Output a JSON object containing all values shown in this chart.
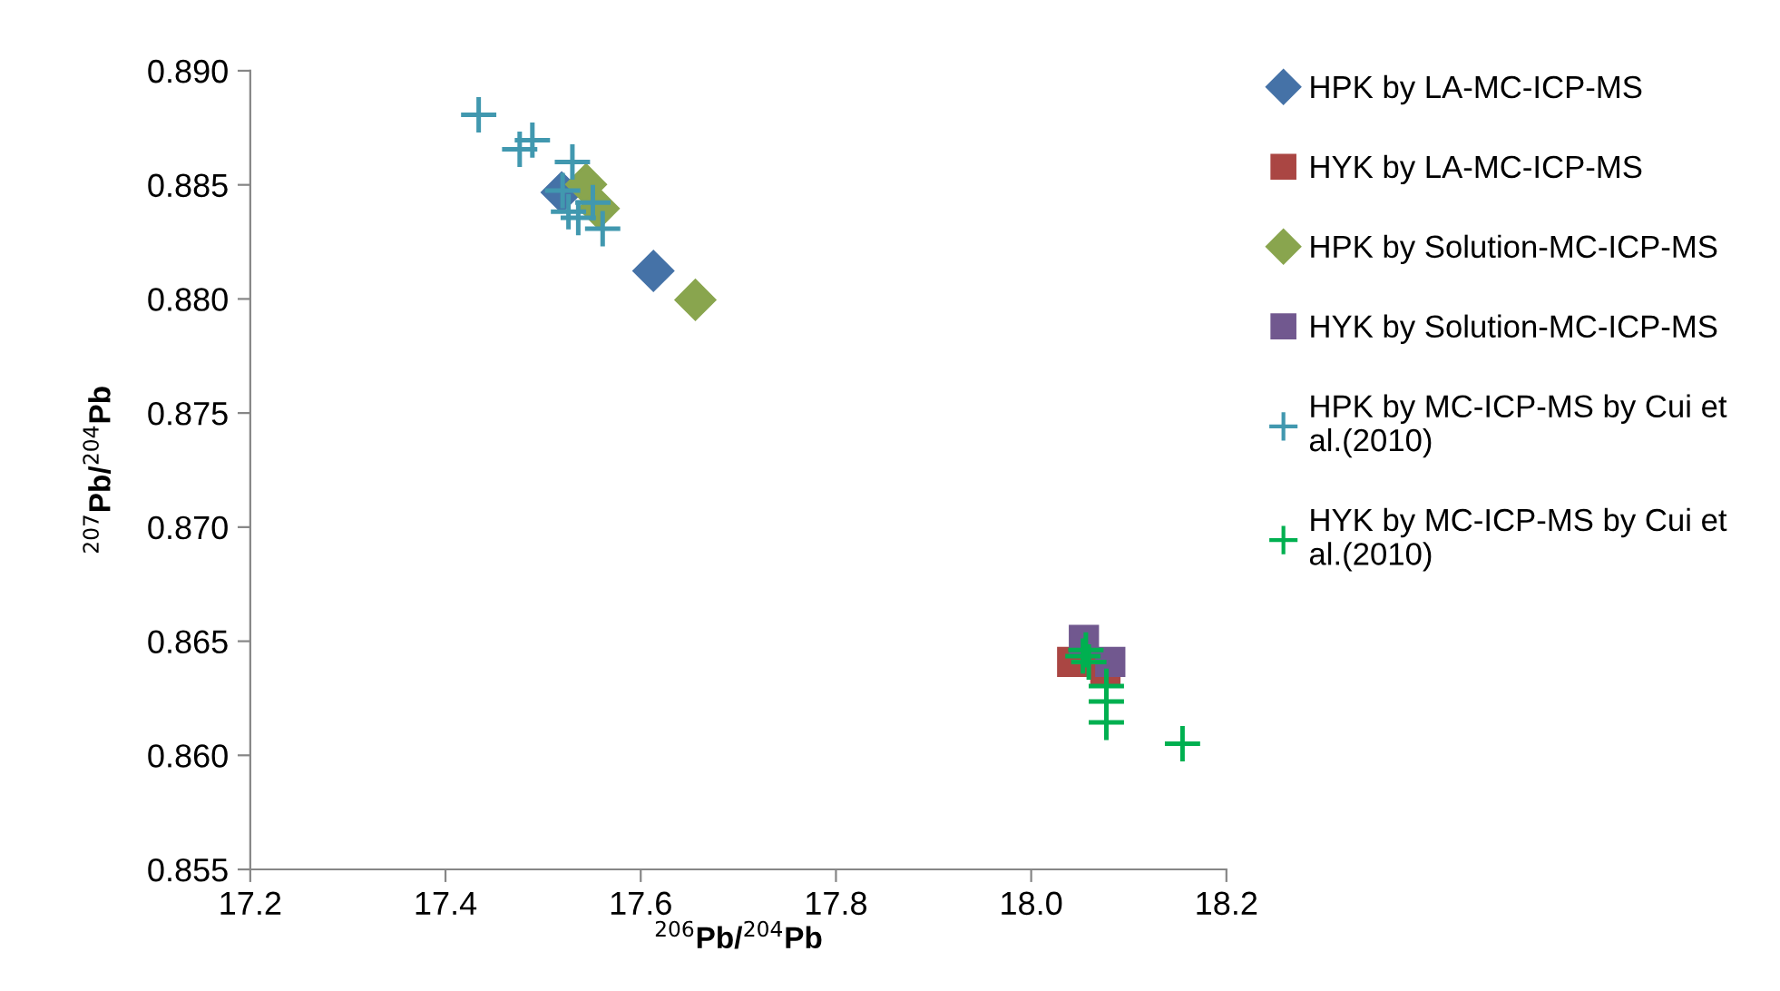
{
  "chart_data": {
    "type": "scatter",
    "xlabel": "$^{206}$Pb/$^{204}$Pb",
    "ylabel": "$^{207}$Pb/$^{204}$Pb",
    "xlim": [
      17.2,
      18.2
    ],
    "xticks": [
      17.2,
      17.4,
      17.6,
      17.8,
      {
        "value": 18.0,
        "label": "18.0"
      },
      18.2
    ],
    "ylim": [
      0.855,
      0.89
    ],
    "yticks": [
      0.855,
      {
        "value": 0.86,
        "label": "0.860"
      },
      0.865,
      {
        "value": 0.87,
        "label": "0.870"
      },
      0.875,
      {
        "value": 0.88,
        "label": "0.880"
      },
      0.885,
      {
        "value": 0.89,
        "label": "0.890"
      }
    ],
    "grid": false,
    "legend": "right",
    "series": [
      {
        "name": "HPK by LA-MC-ICP-MS",
        "color": "#4572a7",
        "marker": "diamond",
        "x": [
          17.519,
          17.613
        ],
        "values": [
          0.88467,
          0.88123
        ]
      },
      {
        "name": "HYK by LA-MC-ICP-MS",
        "color": "#aa4643",
        "marker": "square",
        "x": [
          18.042,
          18.076
        ],
        "values": [
          0.86409,
          0.86374
        ]
      },
      {
        "name": "HPK by Solution-MC-ICP-MS",
        "color": "#89a54e",
        "marker": "diamond",
        "x": [
          17.544,
          17.557,
          17.656
        ],
        "values": [
          0.88502,
          0.88396,
          0.87996
        ]
      },
      {
        "name": "HYK by Solution-MC-ICP-MS",
        "color": "#71588f",
        "marker": "square",
        "x": [
          18.054,
          18.081
        ],
        "values": [
          0.86506,
          0.86409
        ]
      },
      {
        "name": "HPK by MC-ICP-MS by Cui et al.(2010)",
        "color": "#4198af",
        "marker": "cross",
        "x": [
          17.434,
          17.476,
          17.489,
          17.53,
          17.52,
          17.551,
          17.526,
          17.536,
          17.561
        ],
        "values": [
          0.88807,
          0.88656,
          0.88696,
          0.886,
          0.88475,
          0.88422,
          0.88382,
          0.88356,
          0.88308
        ]
      },
      {
        "name": "HYK by MC-ICP-MS by Cui et al.(2010)",
        "color": "#00b050",
        "marker": "cross",
        "x": [
          18.053,
          18.059,
          18.056,
          18.077,
          18.077,
          18.077,
          18.155
        ],
        "values": [
          0.86435,
          0.86409,
          0.86462,
          0.86303,
          0.86236,
          0.86144,
          0.86051
        ]
      }
    ]
  }
}
